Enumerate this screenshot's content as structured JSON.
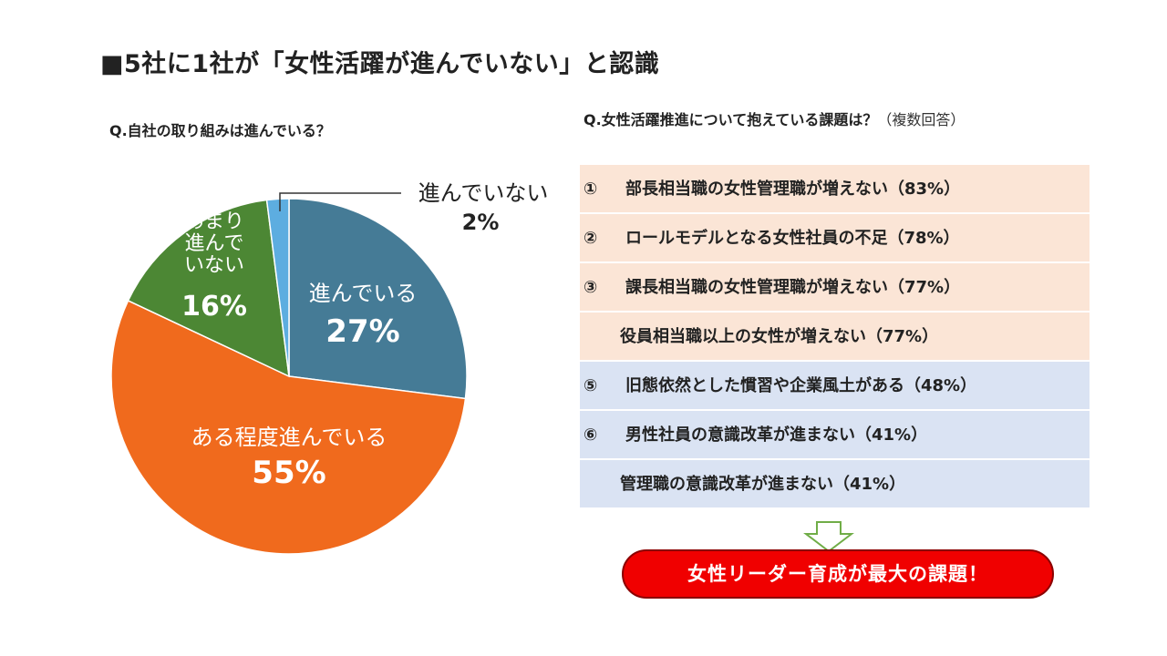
{
  "title": "■5社に1社が「女性活躍が進んでいない」と認識",
  "left_question": "Q.自社の取り組みは進んでいる？",
  "right_question": "Q.女性活躍推進について抱えている課題は？",
  "right_question_note": "（複数回答）",
  "chart_data": {
    "type": "pie",
    "slices": [
      {
        "label": "進んでいる",
        "value": 27,
        "value_label": "27%",
        "color": "#457b96"
      },
      {
        "label": "ある程度進んでいる",
        "value": 55,
        "value_label": "55%",
        "color": "#f06a1d"
      },
      {
        "label_lines": [
          "あまり",
          "進んで",
          "いない"
        ],
        "label": "あまり進んでいない",
        "value": 16,
        "value_label": "16%",
        "color": "#4c8734"
      },
      {
        "label": "進んでいない",
        "value": 2,
        "value_label": "2%",
        "color": "#5dade0"
      }
    ]
  },
  "issues": [
    {
      "num": "①",
      "text": "部長相当職の女性管理職が増えない（83%）",
      "group": "hi"
    },
    {
      "num": "②",
      "text": "ロールモデルとなる女性社員の不足（78%）",
      "group": "hi"
    },
    {
      "num": "③",
      "text": "課長相当職の女性管理職が増えない（77%）",
      "group": "hi"
    },
    {
      "num": "",
      "text": "役員相当職以上の女性が増えない（77%）",
      "group": "hi"
    },
    {
      "num": "⑤",
      "text": "旧態依然とした慣習や企業風土がある（48%）",
      "group": "lo"
    },
    {
      "num": "⑥",
      "text": "男性社員の意識改革が進まない（41%）",
      "group": "lo"
    },
    {
      "num": "",
      "text": "管理職の意識改革が進まない（41%）",
      "group": "lo"
    }
  ],
  "conclusion": "女性リーダー育成が最大の課題！",
  "colors": {
    "highlight_bg": "#fbe5d6",
    "normal_bg": "#dae3f3",
    "cta_red": "#f00000",
    "arrow_green": "#70ad47"
  }
}
